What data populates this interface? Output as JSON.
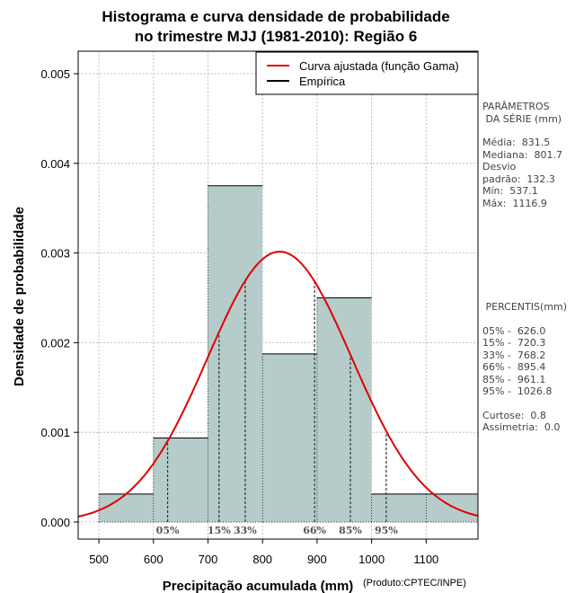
{
  "chart_data": {
    "type": "histogram",
    "title": [
      "Histograma e curva densidade de probabilidade",
      "no trimestre MJJ (1981-2010): Região 6"
    ],
    "xlabel": "Precipitação acumulada (mm)",
    "ylabel": "Densidade de probabilidade",
    "credit": "(Produto:CPTEC/INPE)",
    "xlim": [
      462,
      1195
    ],
    "ylim": [
      0,
      0.0052
    ],
    "x_ticks": [
      500,
      600,
      700,
      800,
      900,
      1000,
      1100
    ],
    "y_ticks": [
      0,
      0.001,
      0.002,
      0.003,
      0.004,
      0.005
    ],
    "y_tick_labels": [
      "0.000",
      "0.001",
      "0.002",
      "0.003",
      "0.004",
      "0.005"
    ],
    "grid": true,
    "bins": [
      {
        "from": 500,
        "to": 600,
        "density": 0.000312
      },
      {
        "from": 600,
        "to": 700,
        "density": 0.000937
      },
      {
        "from": 700,
        "to": 800,
        "density": 0.00375
      },
      {
        "from": 800,
        "to": 900,
        "density": 0.001875
      },
      {
        "from": 900,
        "to": 1000,
        "density": 0.0025
      },
      {
        "from": 1000,
        "to": 1100,
        "density": 0.000312
      },
      {
        "from": 1100,
        "to": 1200,
        "density": 0.000312
      }
    ],
    "fitted_curve": {
      "name": "Curva ajustada (função Gama)",
      "color": "#e00000",
      "mean": 831.5,
      "sd": 132.3
    },
    "legend": {
      "position": "top-right",
      "entries": [
        {
          "label": "Curva ajustada (função Gama)",
          "color": "#e00000"
        },
        {
          "label": "Empírica",
          "color": "#000000"
        }
      ]
    },
    "percentiles": [
      {
        "label": "05%",
        "value": 626.0
      },
      {
        "label": "15%",
        "value": 720.3
      },
      {
        "label": "33%",
        "value": 768.2
      },
      {
        "label": "66%",
        "value": 895.4
      },
      {
        "label": "85%",
        "value": 961.1
      },
      {
        "label": "95%",
        "value": 1026.8
      }
    ],
    "bar_color": "#b5cccb"
  },
  "side_panel": {
    "params_title_1": "PARÂMETROS",
    "params_title_2": " DA SÉRIE (mm)",
    "media": "Média:  831.5",
    "mediana": "Mediana:  801.7",
    "desvio_1": "Desvio",
    "desvio_2": "padrão:  132.3",
    "min": "Mín:  537.1",
    "max": "Máx:  1116.9",
    "percentis_title": " PERCENTIS(mm)",
    "p05": "05% -  626.0",
    "p15": "15% -  720.3",
    "p33": "33% -  768.2",
    "p66": "66% -  895.4",
    "p85": "85% -  961.1",
    "p95": "95% -  1026.8",
    "curtose": "Curtose:  0.8",
    "assimetria": "Assimetria:  0.0"
  }
}
